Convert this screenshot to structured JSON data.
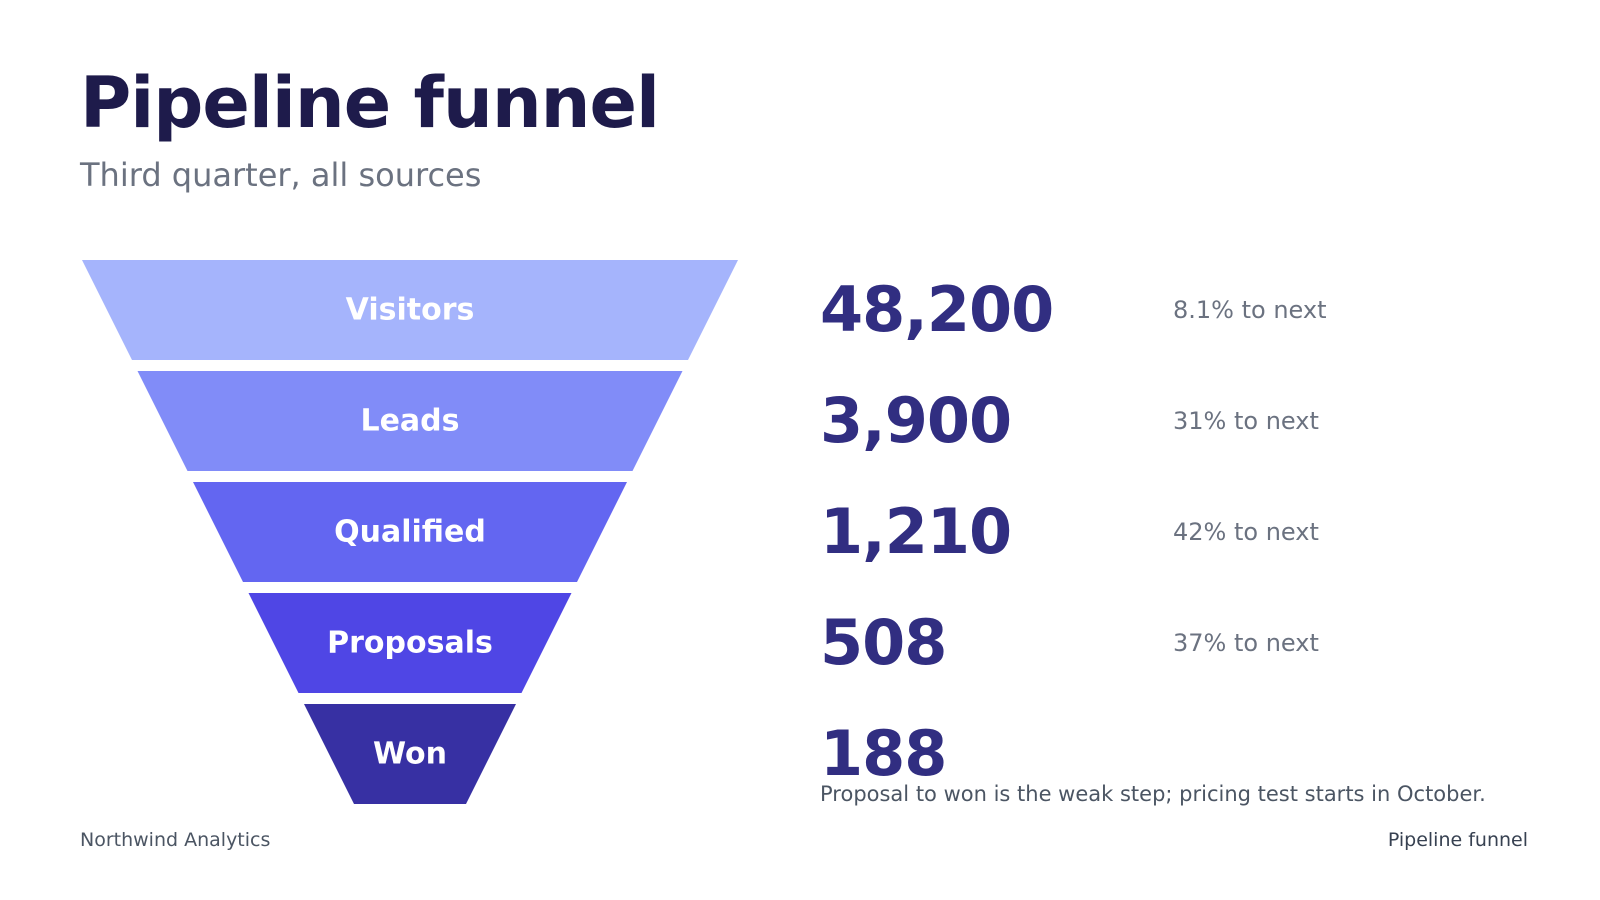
{
  "header": {
    "title": "Pipeline funnel",
    "subtitle": "Third quarter, all sources"
  },
  "chart_data": {
    "type": "funnel",
    "stages": [
      {
        "label": "Visitors",
        "value": 48200,
        "value_label": "48,200",
        "conversion": "8.1% to next",
        "color": "#a5b4fc"
      },
      {
        "label": "Leads",
        "value": 3900,
        "value_label": "3,900",
        "conversion": "31% to next",
        "color": "#818cf8"
      },
      {
        "label": "Qualified",
        "value": 1210,
        "value_label": "1,210",
        "conversion": "42% to next",
        "color": "#6366f1"
      },
      {
        "label": "Proposals",
        "value": 508,
        "value_label": "508",
        "conversion": "37% to next",
        "color": "#4f46e5"
      },
      {
        "label": "Won",
        "value": 188,
        "value_label": "188",
        "conversion": "",
        "color": "#3730a3"
      }
    ],
    "annotation": "Proposal to won is the weak step; pricing test starts in October."
  },
  "footer": {
    "left": "Northwind Analytics",
    "right": "Pipeline funnel"
  },
  "colors": {
    "title": "#1e1b4b",
    "count": "#312e81",
    "muted": "#6b7280"
  }
}
